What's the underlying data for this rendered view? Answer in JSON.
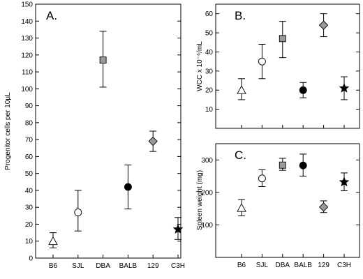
{
  "chart_data": [
    {
      "type": "scatter",
      "panel_label": "A.",
      "ylabel": "Progenitor cells per 10µL",
      "xlabel": "",
      "categories": [
        "B6",
        "SJL",
        "DBA",
        "BALB",
        "129",
        "C3H"
      ],
      "ylim": [
        0,
        150
      ],
      "yticks": [
        "0",
        "10",
        "20",
        "30",
        "40",
        "50",
        "60",
        "70",
        "80",
        "90",
        "100",
        "110",
        "120",
        "130",
        "140",
        "150"
      ],
      "points": [
        {
          "category": "B6",
          "value": 10,
          "err_low": 6,
          "err_high": 15,
          "marker": "triangle",
          "fill": "#ffffff"
        },
        {
          "category": "SJL",
          "value": 27,
          "err_low": 16,
          "err_high": 40,
          "marker": "circle",
          "fill": "#ffffff"
        },
        {
          "category": "DBA",
          "value": 117,
          "err_low": 101,
          "err_high": 134,
          "marker": "square",
          "fill": "#9a9a9a"
        },
        {
          "category": "BALB",
          "value": 42,
          "err_low": 29,
          "err_high": 55,
          "marker": "circle",
          "fill": "#000000"
        },
        {
          "category": "129",
          "value": 69,
          "err_low": 63,
          "err_high": 75,
          "marker": "diamond",
          "fill": "#9a9a9a"
        },
        {
          "category": "C3H",
          "value": 17,
          "err_low": 11,
          "err_high": 24,
          "marker": "star",
          "fill": "#000000"
        }
      ]
    },
    {
      "type": "scatter",
      "panel_label": "B.",
      "ylabel": "WCC x 10⁻⁶/mL",
      "xlabel": "",
      "categories": [
        "B6",
        "SJL",
        "DBA",
        "BALB",
        "129",
        "C3H"
      ],
      "ylim": [
        0,
        65
      ],
      "yticks": [
        "10",
        "20",
        "30",
        "40",
        "50",
        "60"
      ],
      "points": [
        {
          "category": "B6",
          "value": 20,
          "err_low": 15,
          "err_high": 26,
          "marker": "triangle",
          "fill": "#ffffff"
        },
        {
          "category": "SJL",
          "value": 35,
          "err_low": 26,
          "err_high": 44,
          "marker": "circle",
          "fill": "#ffffff"
        },
        {
          "category": "DBA",
          "value": 47,
          "err_low": 37,
          "err_high": 56,
          "marker": "square",
          "fill": "#9a9a9a"
        },
        {
          "category": "BALB",
          "value": 20,
          "err_low": 16,
          "err_high": 24,
          "marker": "circle",
          "fill": "#000000"
        },
        {
          "category": "129",
          "value": 54,
          "err_low": 48,
          "err_high": 60,
          "marker": "diamond",
          "fill": "#9a9a9a"
        },
        {
          "category": "C3H",
          "value": 21,
          "err_low": 15,
          "err_high": 27,
          "marker": "star",
          "fill": "#000000"
        }
      ]
    },
    {
      "type": "scatter",
      "panel_label": "C.",
      "ylabel": "Spleen weight (mg)",
      "xlabel": "",
      "categories": [
        "B6",
        "SJL",
        "DBA",
        "BALB",
        "129",
        "C3H"
      ],
      "ylim": [
        0,
        350
      ],
      "yticks": [
        "100",
        "200",
        "300"
      ],
      "points": [
        {
          "category": "B6",
          "value": 152,
          "err_low": 128,
          "err_high": 178,
          "marker": "triangle",
          "fill": "#ffffff"
        },
        {
          "category": "SJL",
          "value": 243,
          "err_low": 218,
          "err_high": 270,
          "marker": "circle",
          "fill": "#ffffff"
        },
        {
          "category": "DBA",
          "value": 284,
          "err_low": 268,
          "err_high": 305,
          "marker": "square",
          "fill": "#9a9a9a"
        },
        {
          "category": "BALB",
          "value": 283,
          "err_low": 250,
          "err_high": 318,
          "marker": "circle",
          "fill": "#000000"
        },
        {
          "category": "129",
          "value": 155,
          "err_low": 138,
          "err_high": 174,
          "marker": "diamond",
          "fill": "#9a9a9a"
        },
        {
          "category": "C3H",
          "value": 232,
          "err_low": 205,
          "err_high": 260,
          "marker": "star",
          "fill": "#000000"
        }
      ]
    }
  ]
}
